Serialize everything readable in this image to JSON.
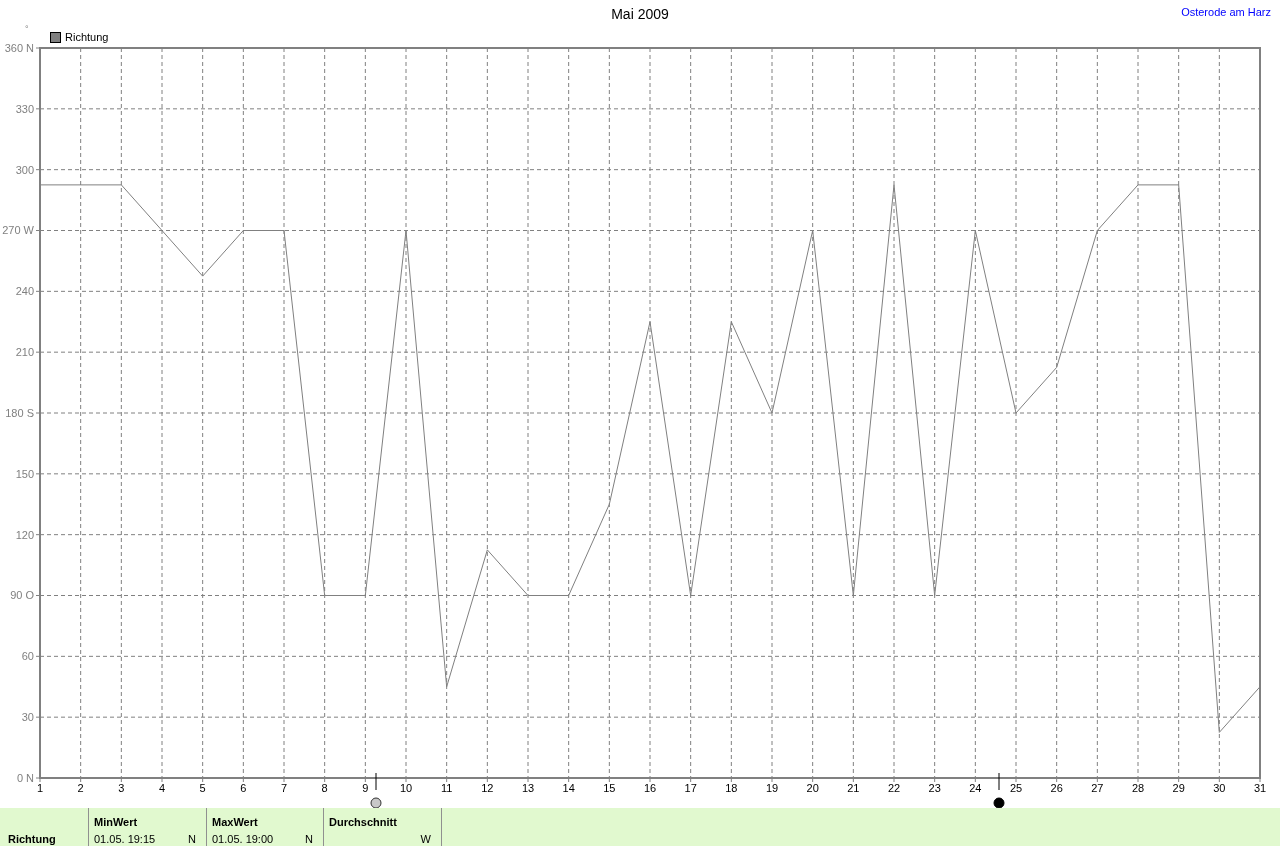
{
  "chart_data": {
    "type": "line",
    "title": "Mai 2009",
    "subtitle": "Osterode am Harz",
    "ylabel": "°",
    "x": [
      1,
      2,
      3,
      4,
      5,
      6,
      7,
      8,
      9,
      10,
      11,
      12,
      13,
      14,
      15,
      16,
      17,
      18,
      19,
      20,
      21,
      22,
      23,
      24,
      25,
      26,
      27,
      28,
      29,
      30,
      31
    ],
    "series": [
      {
        "name": "Richtung",
        "color": "#808080",
        "values": [
          292.5,
          292.5,
          292.5,
          270,
          247.5,
          270,
          270,
          90,
          90,
          270,
          45,
          112.5,
          90,
          90,
          135,
          225,
          90,
          225,
          180,
          270,
          90,
          292.5,
          90,
          270,
          180,
          202.5,
          270,
          292.5,
          292.5,
          22.5,
          45
        ]
      }
    ],
    "xlim": [
      1,
      31
    ],
    "xticks": [
      1,
      2,
      3,
      4,
      5,
      6,
      7,
      8,
      9,
      10,
      11,
      12,
      13,
      14,
      15,
      16,
      17,
      18,
      19,
      20,
      21,
      22,
      23,
      24,
      25,
      26,
      27,
      28,
      29,
      30,
      31
    ],
    "ylim": [
      0,
      360
    ],
    "yticks": [
      {
        "value": 0,
        "label": "0 N"
      },
      30,
      60,
      {
        "value": 90,
        "label": "90 O"
      },
      120,
      150,
      {
        "value": 180,
        "label": "180 S"
      },
      210,
      240,
      {
        "value": 270,
        "label": "270 W"
      },
      300,
      330,
      {
        "value": 360,
        "label": "360 N"
      }
    ],
    "grid": true,
    "legend": "top left",
    "marker": "none",
    "line_style": "solid",
    "annotations": [
      "Richtung",
      "MinWert",
      "01.05. 19:15",
      "N",
      "MaxWert",
      "01.05. 19:00",
      "N",
      "Durchschnitt",
      "W"
    ]
  }
}
